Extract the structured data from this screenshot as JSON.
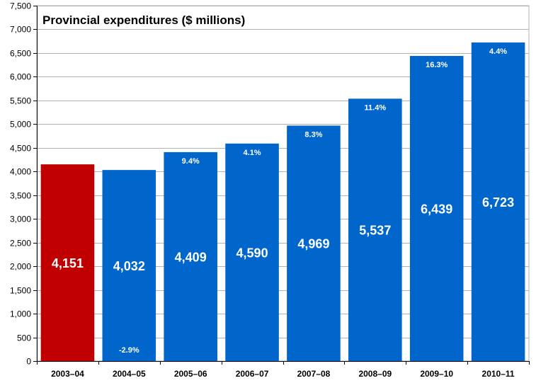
{
  "chart_data": {
    "type": "bar",
    "title": "Provincial expenditures ($ millions)",
    "xlabel": "",
    "ylabel": "",
    "categories": [
      "2003–04",
      "2004–05",
      "2005–06",
      "2006–07",
      "2007–08",
      "2008–09",
      "2009–10",
      "2010–11"
    ],
    "values": [
      4151,
      4032,
      4409,
      4590,
      4969,
      5537,
      6439,
      6723
    ],
    "value_labels": [
      "4,151",
      "4,032",
      "4,409",
      "4,590",
      "4,969",
      "5,537",
      "6,439",
      "6,723"
    ],
    "pct_change_labels": [
      "",
      "-2.9%",
      "9.4%",
      "4.1%",
      "8.3%",
      "11.4%",
      "16.3%",
      "4.4%"
    ],
    "ylim": [
      0,
      7500
    ],
    "yticks": [
      0,
      500,
      1000,
      1500,
      2000,
      2500,
      3000,
      3500,
      4000,
      4500,
      5000,
      5500,
      6000,
      6500,
      7000,
      7500
    ],
    "ytick_labels": [
      "0",
      "500",
      "1,000",
      "1,500",
      "2,000",
      "2,500",
      "3,000",
      "3,500",
      "4,000",
      "4,500",
      "5,000",
      "5,500",
      "6,000",
      "6,500",
      "7,000",
      "7,500"
    ],
    "grid": true,
    "legend": "none",
    "colors": {
      "highlight": "#c00000",
      "bar": "#0066cc",
      "grid": "#b3b3b3",
      "axis": "#000000"
    },
    "highlight_index": 0
  }
}
